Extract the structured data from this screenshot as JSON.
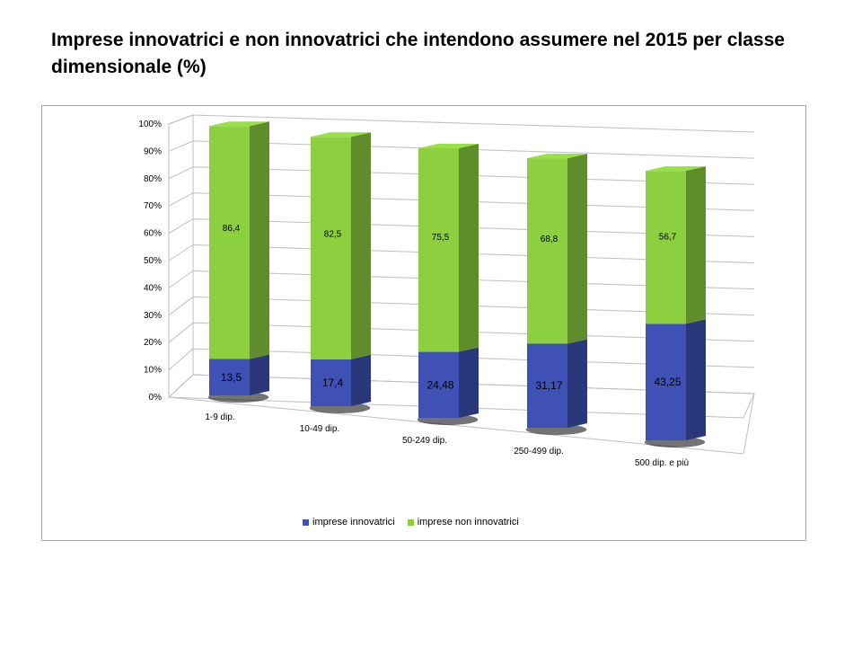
{
  "title": "Imprese innovatrici e non innovatrici che intendono assumere nel 2015 per classe dimensionale (%)",
  "chart_data": {
    "type": "bar",
    "stacked": true,
    "three_d": true,
    "categories": [
      "1-9 dip.",
      "10-49 dip.",
      "50-249 dip.",
      "250-499 dip.",
      "500 dip. e più"
    ],
    "series": [
      {
        "name": "imprese innovatrici",
        "values": [
          13.5,
          17.4,
          24.48,
          31.17,
          43.25
        ],
        "labels": [
          "13,5",
          "17,4",
          "24,48",
          "31,17",
          "43,25"
        ],
        "color": "#3f51b5"
      },
      {
        "name": "imprese non innovatrici",
        "values": [
          86.4,
          82.5,
          75.5,
          68.8,
          56.7
        ],
        "labels": [
          "86,4",
          "82,5",
          "75,5",
          "68,8",
          "56,7"
        ],
        "color": "#8cd040"
      }
    ],
    "ylim": [
      0,
      100
    ],
    "yticks": [
      "0%",
      "10%",
      "20%",
      "30%",
      "40%",
      "50%",
      "60%",
      "70%",
      "80%",
      "90%",
      "100%"
    ],
    "grid": true,
    "legend_position": "bottom"
  }
}
